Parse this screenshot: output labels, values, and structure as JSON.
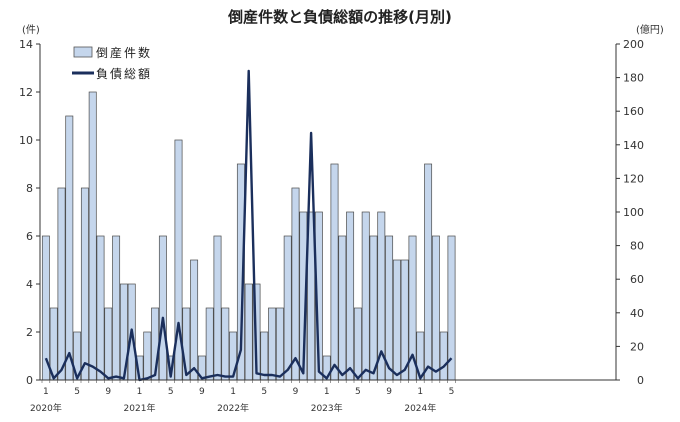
{
  "chart_data": {
    "type": "bar",
    "title": "倒産件数と負債総額の推移(月別)",
    "left_unit": "(件)",
    "right_unit": "(億円)",
    "left_ylim": [
      0,
      14
    ],
    "left_ticks": [
      "0",
      "2",
      "4",
      "6",
      "8",
      "10",
      "12",
      "14"
    ],
    "right_ylim": [
      0,
      200
    ],
    "right_ticks": [
      "0",
      "20",
      "40",
      "60",
      "80",
      "100",
      "120",
      "140",
      "160",
      "180",
      "200"
    ],
    "legend_placement": "top-left",
    "x": [
      "2020-01",
      "2020-02",
      "2020-03",
      "2020-04",
      "2020-05",
      "2020-06",
      "2020-07",
      "2020-08",
      "2020-09",
      "2020-10",
      "2020-11",
      "2020-12",
      "2021-01",
      "2021-02",
      "2021-03",
      "2021-04",
      "2021-05",
      "2021-06",
      "2021-07",
      "2021-08",
      "2021-09",
      "2021-10",
      "2021-11",
      "2021-12",
      "2022-01",
      "2022-02",
      "2022-03",
      "2022-04",
      "2022-05",
      "2022-06",
      "2022-07",
      "2022-08",
      "2022-09",
      "2022-10",
      "2022-11",
      "2022-12",
      "2023-01",
      "2023-02",
      "2023-03",
      "2023-04",
      "2023-05",
      "2023-06",
      "2023-07",
      "2023-08",
      "2023-09",
      "2023-10",
      "2023-11",
      "2023-12",
      "2024-01",
      "2024-02",
      "2024-03",
      "2024-04",
      "2024-05"
    ],
    "x_tick_labels": [
      {
        "index": 0,
        "label": "1"
      },
      {
        "index": 4,
        "label": "5"
      },
      {
        "index": 8,
        "label": "9"
      },
      {
        "index": 12,
        "label": "1"
      },
      {
        "index": 16,
        "label": "5"
      },
      {
        "index": 20,
        "label": "9"
      },
      {
        "index": 24,
        "label": "1"
      },
      {
        "index": 28,
        "label": "5"
      },
      {
        "index": 32,
        "label": "9"
      },
      {
        "index": 36,
        "label": "1"
      },
      {
        "index": 40,
        "label": "5"
      },
      {
        "index": 44,
        "label": "9"
      },
      {
        "index": 48,
        "label": "1"
      },
      {
        "index": 52,
        "label": "5"
      }
    ],
    "year_labels": [
      {
        "index": 0,
        "label": "2020年"
      },
      {
        "index": 12,
        "label": "2021年"
      },
      {
        "index": 24,
        "label": "2022年"
      },
      {
        "index": 36,
        "label": "2023年"
      },
      {
        "index": 48,
        "label": "2024年"
      }
    ],
    "series": [
      {
        "name": "倒産件数",
        "type": "bar",
        "axis": "left",
        "color": "#c5d6ec",
        "values": [
          6,
          3,
          8,
          11,
          2,
          8,
          12,
          6,
          3,
          6,
          4,
          4,
          1,
          2,
          3,
          6,
          1,
          10,
          3,
          5,
          1,
          3,
          6,
          3,
          2,
          9,
          4,
          4,
          2,
          3,
          3,
          6,
          8,
          7,
          7,
          7,
          1,
          9,
          6,
          7,
          3,
          7,
          6,
          7,
          6,
          5,
          5,
          6,
          2,
          9,
          6,
          2,
          6
        ]
      },
      {
        "name": "負債総額",
        "type": "line",
        "axis": "right",
        "color": "#1b2f5c",
        "values": [
          13,
          1,
          6,
          16,
          1,
          10,
          8,
          5,
          1,
          2,
          1,
          30,
          0,
          1,
          3,
          37,
          2,
          34,
          3,
          7,
          1,
          2,
          3,
          2,
          2,
          18,
          184,
          4,
          3,
          3,
          2,
          6,
          13,
          4,
          147,
          5,
          1,
          9,
          3,
          7,
          1,
          6,
          4,
          17,
          7,
          3,
          6,
          15,
          1,
          8,
          5,
          8,
          13
        ]
      }
    ]
  }
}
